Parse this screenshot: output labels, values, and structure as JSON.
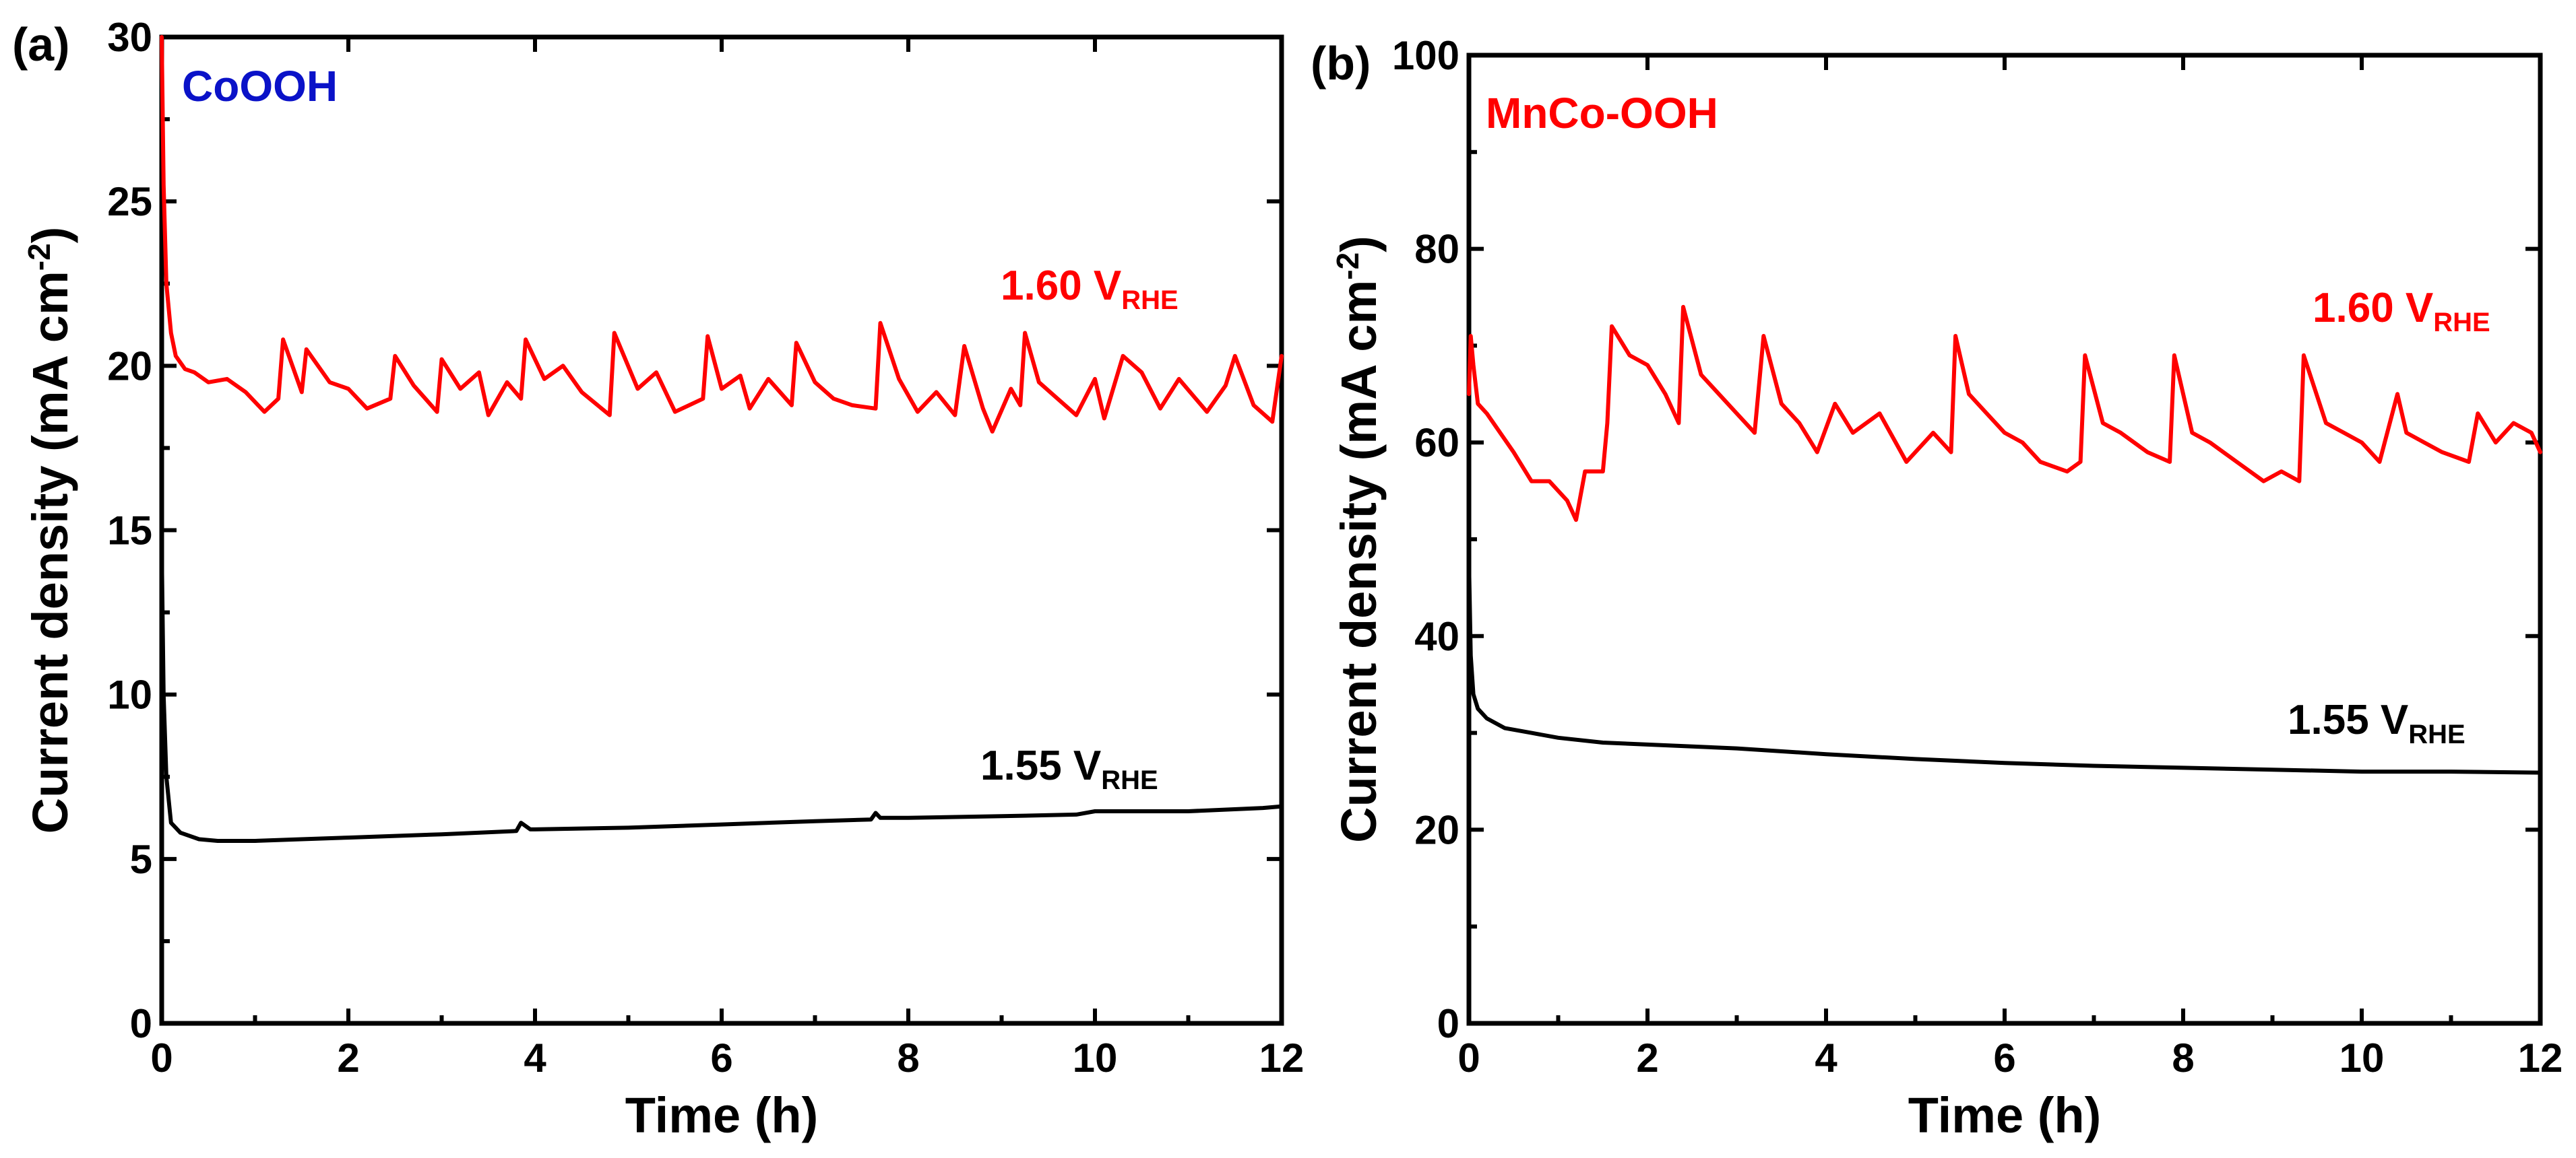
{
  "chart_data": [
    {
      "type": "line",
      "panel_label": "(a)",
      "sample": "CoOOH",
      "sample_color": "#0a12c8",
      "xlabel": "Time (h)",
      "ylabel": "Current density (mA cm⁻²)",
      "ylabel_parts": {
        "main": "Current density (mA cm",
        "sup": "-2",
        "close": ")"
      },
      "xlim": [
        0,
        12
      ],
      "ylim": [
        0,
        30
      ],
      "xticks": [
        0,
        2,
        4,
        6,
        8,
        10,
        12
      ],
      "yticks": [
        0,
        5,
        10,
        15,
        20,
        25,
        30
      ],
      "series": [
        {
          "name": "1.60 V_RHE",
          "label_main": "1.60 V",
          "label_sub": "RHE",
          "color": "#ff0000",
          "x": [
            0,
            0.02,
            0.05,
            0.1,
            0.15,
            0.25,
            0.35,
            0.5,
            0.7,
            0.9,
            1.1,
            1.25,
            1.3,
            1.5,
            1.55,
            1.8,
            2.0,
            2.2,
            2.45,
            2.5,
            2.7,
            2.95,
            3.0,
            3.2,
            3.4,
            3.5,
            3.7,
            3.85,
            3.9,
            4.1,
            4.3,
            4.5,
            4.8,
            4.85,
            5.1,
            5.3,
            5.5,
            5.8,
            5.85,
            6.0,
            6.2,
            6.3,
            6.5,
            6.75,
            6.8,
            7.0,
            7.2,
            7.4,
            7.65,
            7.7,
            7.9,
            8.1,
            8.3,
            8.5,
            8.6,
            8.8,
            8.9,
            9.1,
            9.2,
            9.25,
            9.4,
            9.6,
            9.8,
            10.0,
            10.1,
            10.3,
            10.5,
            10.7,
            10.9,
            11.2,
            11.4,
            11.5,
            11.7,
            11.9,
            12.0
          ],
          "y": [
            30.0,
            25.5,
            22.5,
            21.0,
            20.3,
            19.9,
            19.8,
            19.5,
            19.6,
            19.2,
            18.6,
            19.0,
            20.8,
            19.2,
            20.5,
            19.5,
            19.3,
            18.7,
            19.0,
            20.3,
            19.4,
            18.6,
            20.2,
            19.3,
            19.8,
            18.5,
            19.5,
            19.0,
            20.8,
            19.6,
            20.0,
            19.2,
            18.5,
            21.0,
            19.3,
            19.8,
            18.6,
            19.0,
            20.9,
            19.3,
            19.7,
            18.7,
            19.6,
            18.8,
            20.7,
            19.5,
            19.0,
            18.8,
            18.7,
            21.3,
            19.6,
            18.6,
            19.2,
            18.5,
            20.6,
            18.7,
            18.0,
            19.3,
            18.8,
            21.0,
            19.5,
            19.0,
            18.5,
            19.6,
            18.4,
            20.3,
            19.8,
            18.7,
            19.6,
            18.6,
            19.4,
            20.3,
            18.8,
            18.3,
            20.3
          ]
        },
        {
          "name": "1.55 V_RHE",
          "label_main": "1.55 V",
          "label_sub": "RHE",
          "color": "#000000",
          "x": [
            0,
            0.02,
            0.05,
            0.1,
            0.2,
            0.4,
            0.6,
            1.0,
            1.5,
            2.0,
            3.0,
            3.8,
            3.85,
            3.95,
            4.0,
            5.0,
            6.0,
            7.0,
            7.6,
            7.65,
            7.7,
            8.0,
            9.0,
            9.8,
            10.0,
            11.0,
            11.8,
            12.0
          ],
          "y": [
            14.5,
            10.0,
            7.5,
            6.1,
            5.8,
            5.6,
            5.55,
            5.55,
            5.6,
            5.65,
            5.75,
            5.85,
            6.1,
            5.9,
            5.9,
            5.95,
            6.05,
            6.15,
            6.2,
            6.4,
            6.25,
            6.25,
            6.3,
            6.35,
            6.45,
            6.45,
            6.55,
            6.6
          ]
        }
      ]
    },
    {
      "type": "line",
      "panel_label": "(b)",
      "sample": "MnCo-OOH",
      "sample_color": "#ff0000",
      "xlabel": "Time (h)",
      "ylabel": "Current density (mA cm⁻²)",
      "ylabel_parts": {
        "main": "Current density (mA cm",
        "sup": "-2",
        "close": ")"
      },
      "xlim": [
        0,
        12
      ],
      "ylim": [
        0,
        100
      ],
      "xticks": [
        0,
        2,
        4,
        6,
        8,
        10,
        12
      ],
      "yticks": [
        0,
        20,
        40,
        60,
        80,
        100
      ],
      "series": [
        {
          "name": "1.60 V_RHE",
          "label_main": "1.60 V",
          "label_sub": "RHE",
          "color": "#ff0000",
          "x": [
            0,
            0.02,
            0.05,
            0.1,
            0.2,
            0.35,
            0.5,
            0.7,
            0.9,
            1.1,
            1.2,
            1.3,
            1.5,
            1.55,
            1.6,
            1.8,
            2.0,
            2.2,
            2.35,
            2.4,
            2.6,
            2.8,
            3.0,
            3.2,
            3.3,
            3.5,
            3.7,
            3.9,
            4.1,
            4.3,
            4.6,
            4.9,
            5.2,
            5.4,
            5.45,
            5.6,
            5.8,
            6.0,
            6.2,
            6.4,
            6.7,
            6.85,
            6.9,
            7.1,
            7.3,
            7.6,
            7.85,
            7.9,
            8.1,
            8.3,
            8.6,
            8.9,
            9.1,
            9.3,
            9.35,
            9.6,
            9.8,
            10.0,
            10.2,
            10.4,
            10.5,
            10.7,
            10.9,
            11.2,
            11.3,
            11.5,
            11.7,
            11.9,
            12.0
          ],
          "y": [
            65,
            71,
            68,
            64,
            63,
            61,
            59,
            56,
            56,
            54,
            52,
            57,
            57,
            62,
            72,
            69,
            68,
            65,
            62,
            74,
            67,
            65,
            63,
            61,
            71,
            64,
            62,
            59,
            64,
            61,
            63,
            58,
            61,
            59,
            71,
            65,
            63,
            61,
            60,
            58,
            57,
            58,
            69,
            62,
            61,
            59,
            58,
            69,
            61,
            60,
            58,
            56,
            57,
            56,
            69,
            62,
            61,
            60,
            58,
            65,
            61,
            60,
            59,
            58,
            63,
            60,
            62,
            61,
            59
          ]
        },
        {
          "name": "1.55 V_RHE",
          "label_main": "1.55 V",
          "label_sub": "RHE",
          "color": "#000000",
          "x": [
            0,
            0.02,
            0.05,
            0.1,
            0.2,
            0.4,
            0.7,
            1.0,
            1.5,
            2.0,
            3.0,
            4.0,
            5.0,
            6.0,
            7.0,
            8.0,
            9.0,
            10.0,
            11.0,
            12.0
          ],
          "y": [
            48,
            38,
            34,
            32.5,
            31.5,
            30.5,
            30.0,
            29.5,
            29.0,
            28.8,
            28.4,
            27.8,
            27.3,
            26.9,
            26.6,
            26.4,
            26.2,
            26.0,
            26.0,
            25.9
          ]
        }
      ]
    }
  ]
}
